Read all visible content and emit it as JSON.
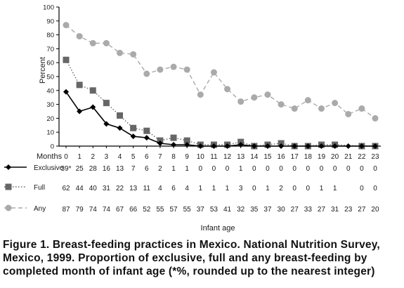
{
  "chart_data": {
    "type": "line",
    "ylabel": "Percent",
    "xlabel": "Infant age",
    "x_row_label": "Months",
    "ylim": [
      0,
      100
    ],
    "yticks": [
      0,
      10,
      20,
      30,
      40,
      50,
      60,
      70,
      80,
      90,
      100
    ],
    "x": [
      0,
      1,
      2,
      3,
      4,
      5,
      6,
      7,
      8,
      9,
      10,
      11,
      12,
      13,
      14,
      15,
      16,
      17,
      18,
      19,
      20,
      21,
      22,
      23
    ],
    "series": [
      {
        "name": "Exclusive",
        "color": "#000000",
        "line": "solid",
        "marker": "diamond",
        "values": [
          39,
          25,
          28,
          16,
          13,
          7,
          6,
          2,
          1,
          1,
          0,
          0,
          0,
          1,
          0,
          0,
          0,
          0,
          0,
          0,
          0,
          0,
          0,
          0
        ],
        "labels": [
          "39*",
          "25",
          "28",
          "16",
          "13",
          "7",
          "6",
          "2",
          "1",
          "1",
          "0",
          "0",
          "0",
          "1",
          "0",
          "0",
          "0",
          "0",
          "0",
          "0",
          "0",
          "0",
          "0",
          "0"
        ]
      },
      {
        "name": "Full",
        "color": "#666666",
        "line": "dotted",
        "marker": "square",
        "values": [
          62,
          44,
          40,
          31,
          22,
          13,
          11,
          4,
          6,
          4,
          1,
          1,
          1,
          3,
          0,
          1,
          2,
          0,
          0,
          1,
          1,
          null,
          0,
          0
        ],
        "labels": [
          "62",
          "44",
          "40",
          "31",
          "22",
          "13",
          "11",
          "4",
          "6",
          "4",
          "1",
          "1",
          "1",
          "3",
          "0",
          "1",
          "2",
          "0",
          "0",
          "1",
          "1",
          "",
          "0",
          "0"
        ]
      },
      {
        "name": "Any",
        "color": "#aaaaaa",
        "line": "dashed",
        "marker": "circle",
        "values": [
          87,
          79,
          74,
          74,
          67,
          66,
          52,
          55,
          57,
          55,
          37,
          53,
          41,
          32,
          35,
          37,
          30,
          27,
          33,
          27,
          31,
          23,
          27,
          20
        ],
        "labels": [
          "87",
          "79",
          "74",
          "74",
          "67",
          "66",
          "52",
          "55",
          "57",
          "55",
          "37",
          "53",
          "41",
          "32",
          "35",
          "37",
          "30",
          "27",
          "33",
          "27",
          "31",
          "23",
          "27",
          "20"
        ]
      }
    ]
  },
  "caption": {
    "label": "Figure 1. Breast-feeding practices in Mexico. National Nutrition Survey, Mexico, 1999.",
    "text": " Proportion of exclusive, full and any breast-feeding by completed month of infant age (*%, rounded up to the nearest integer)"
  }
}
